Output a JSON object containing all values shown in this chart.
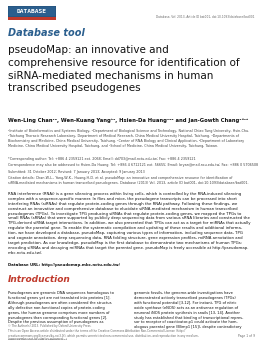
{
  "bg_color": "#ffffff",
  "logo_text": "DATABASE",
  "logo_bg": "#2b5f8e",
  "journal_line": "Database, Vol. 2013, Article ID bat001, doi:10.1093/database/bat001",
  "section_label": "Database tool",
  "title": "pseudoMap: an innovative and\ncomprehensive resource for identification of\nsiRNA-mediated mechanisms in human\ntranscribed pseudogenes",
  "authors": "Wen-Ling Chan¹², Wen-Kuang Yang³⁴, Hsien-Da Huang¹²⁹ and Jan-Gowth Chang¹⁶⁷⁸",
  "affil1": "¹Institute of Bioinformatics and Systems Biology, ²Department of Biological Science and Technology, National Chiao Tung University, Hsin-Chu.\n³Taichung Thoracic Research Laboratory, Department of Medical Research, China Medical University Hospital, Taichung. ⁴Departments of\nBiochemistry and Medicine, China Medical University, Taichung. ⁵Center of RNA Biology and Clinical Application, ⁶Department of Laboratory\nMedicine, China Medical University Hospital, Taichung, and ⁷School of Medicine, China Medical University, Taichung, Taiwan.",
  "corresp1": "*Corresponding author: Tel: +886 4 2359121 ext. 2068; Email: dd703@mail.nctu.edu.tw; Fax: +886 4 2359121",
  "corresp2": "Correspondence may also be addressed to Hsien-Da Huang. Tel: +886 4 6712121 ext. 56655; Email: bryan@mail.ncu.edu.tw; Fax: +886 0 5706508",
  "dates": "Submitted: 31 October 2012; Revised: 7 January 2013; Accepted: 9 January 2013",
  "citation": "Citation details: Chan,W-L., Yang,W-K., Huang,H-D. et al. pseudoMap: an innovative and comprehensive resource for identification of\nsiRNA-mediated mechanisms in human transcribed pseudogenes. Database (2013) Vol. 2013, article ID bat001, doi:10.1093/database/bat001.",
  "abstract_text": "RNA interference (RNAi) is a gene silencing process within living cells, which is controlled by the RNA-induced silencing\ncomplex with a sequence-specific manner. In flies and mice, the pseudogene transcripts can be processed into short\ninterfering RNAs (siRNAs) that regulate protein-coding genes through the RNAi pathway. Following these findings, we\nconstruct an innovative and comprehensive database to elucidate siRNA-mediated mechanism in human transcribed\npseudogenes (TPGs). To investigate TPG producing siRNAs that regulate protein-coding genes, we mapped the TPGs to\nsmall RNAs (sRNAs) that were supported by publicly deep sequencing data from various sRNA libraries and constructed the\nTPG-derived siRNA target interactions. In addition, we also presented that TPGs can act as a target for miRNAs that actually\nregulate the parental gene. To enable the systematic compilation and updating of these results and additional informa-\ntion, we have developed a database, pseudoMap, capturing various types of information, including sequence data, TPG\nand cognate annotation, deep sequencing data, RNA folding structure, gene expression profiles, miRNA annotation and\ntarget prediction. As our knowledge, pseudoMap is the first database to demonstrate two mechanisms of human TPGs:\nencoding siRNAs and decaying miRNAs that target the parental gene. pseudoMap is freely accessible at http://pseudomap.\nmbc.nctu.edu.tw/.",
  "db_url": "Database URL: http://pseudomap.mbc.nctu.edu.tw/",
  "intro_title": "Introduction",
  "intro_col1": "Pseudogenes are genomic DNA sequences homologous to\nfunctional genes yet are not translated into proteins [1].\nAlthough pseudogenes are often considered the structur-\nally defective non-functional copies of protein-coding\ngenes, the human genome comprises more numbers of\npseudogenes than corresponding functional genes [2].\nDespite the previous assumption of pseudogenes as",
  "intro_col2": "genomic fossils, the genome-wide investigations have\ndemonstrated actively transcribed pseudogenes (TPGs)\nwith functional potential [3-12]. For instant, TPG of nitric\noxide synthase (eNOS) acts as an antisense regulation of\nneuronal iNOS protein synthesis in snails [13, 14]. Another\nstudy has established that binding of transcriptional repres-\nsor to receptor of coactivator-p1 could activate the hom-\nologous parental gene (Blimp1 [15]), despite contradictory",
  "footer_cc": "© The Author(s) 2013. Published by Oxford University Press.\nThis is an Open Access article distributed under the terms of the Creative Commons Attribution Non-Commercial License (http://\ncreativecommons.org/licenses/by-nc/3.0/), which permits unrestricted non-commercial use, distribution, and reproduction in any medium,\nprovided the original work is properly cited.",
  "footer_page": "Page 1 of 9",
  "footer_citation_note": "(page number not for citation purposes)"
}
